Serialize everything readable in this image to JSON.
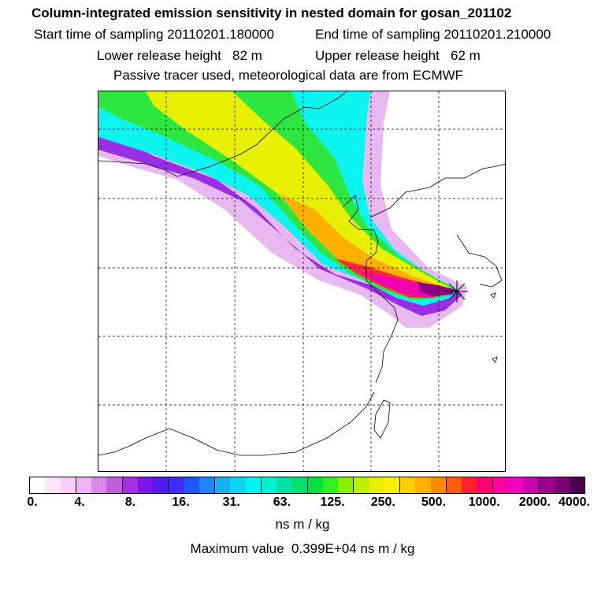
{
  "header": {
    "title": "Column-integrated emission sensitivity in nested domain for gosan_201102",
    "start_time": "Start time of sampling 20110201.180000",
    "end_time": "End time of sampling 20110201.210000",
    "lower_release": "Lower release height   82 m",
    "upper_release": "Upper release height   62 m",
    "info": "Passive tracer used, meteorological data are from ECMWF"
  },
  "legend": {
    "colors": [
      "#ffffff",
      "#fde6fc",
      "#f8cdf7",
      "#f0b2f2",
      "#d88ae8",
      "#c15fe0",
      "#a52fe0",
      "#7a16e8",
      "#5219f0",
      "#3d2cf5",
      "#1a59f8",
      "#1c86f8",
      "#16b0f4",
      "#0bd6f0",
      "#00f4f0",
      "#00f0d0",
      "#00e0a0",
      "#00e070",
      "#00e040",
      "#30f020",
      "#8af000",
      "#bff000",
      "#e8f000",
      "#fff000",
      "#ffd000",
      "#ffb000",
      "#ff8a00",
      "#ff5a10",
      "#ff2030",
      "#ff0070",
      "#ff00a0",
      "#f000c0",
      "#c800b0",
      "#a00090",
      "#780070",
      "#4a004a"
    ],
    "ticks": [
      "0.",
      "4.",
      "8.",
      "16.",
      "31.",
      "63.",
      "125.",
      "250.",
      "500.",
      "1000.",
      "2000.",
      "4000."
    ],
    "units": "ns m / kg",
    "max_value": "Maximum value  0.399E+04 ns m / kg"
  },
  "map": {
    "release_site_marker": "star-icon",
    "plume_colors": {
      "low": "#e8b8f0",
      "purple": "#9a2ee6",
      "blue": "#2a6cf8",
      "cyan": "#0cf4f0",
      "green": "#2ee640",
      "yellow": "#e6f000",
      "orange": "#ffb000",
      "red": "#ff2a40",
      "magenta": "#f000b0",
      "peak": "#8a0080"
    }
  }
}
